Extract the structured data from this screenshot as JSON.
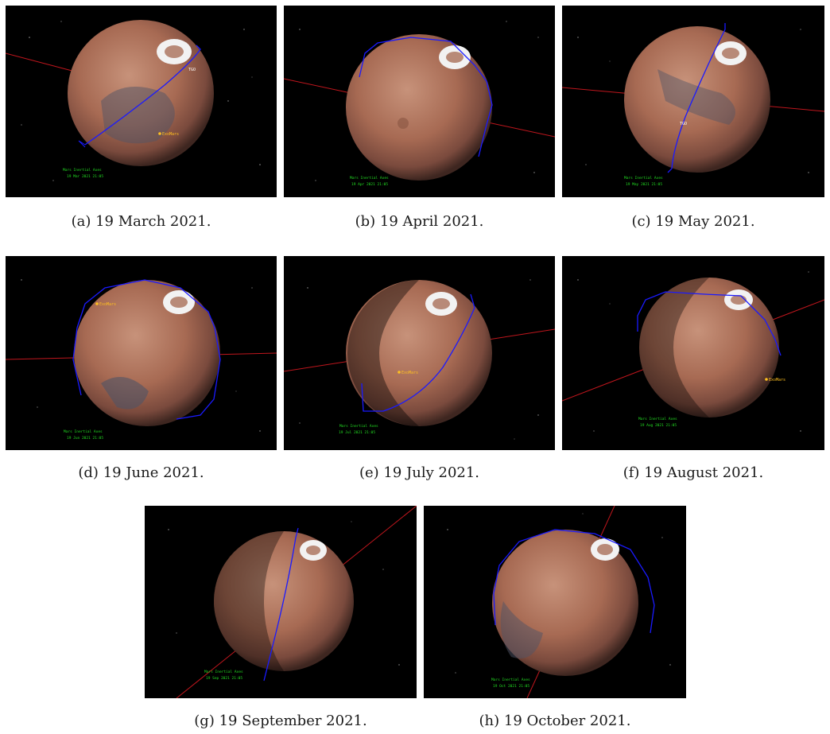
{
  "figure": {
    "panels": [
      {
        "label": "(a)",
        "caption": "19 March 2021.",
        "hud_title": "Mars Inertial Axes",
        "hud_date": "19 Mar 2021 21:05",
        "spacecraft_label": "TGO",
        "marker_label": "ExoMars"
      },
      {
        "label": "(b)",
        "caption": "19 April 2021.",
        "hud_title": "Mars Inertial Axes",
        "hud_date": "19 Apr 2021 21:05",
        "spacecraft_label": "",
        "marker_label": ""
      },
      {
        "label": "(c)",
        "caption": "19 May 2021.",
        "hud_title": "Mars Inertial Axes",
        "hud_date": "19 May 2021 21:05",
        "spacecraft_label": "TGO",
        "marker_label": ""
      },
      {
        "label": "(d)",
        "caption": "19 June 2021.",
        "hud_title": "Mars Inertial Axes",
        "hud_date": "19 Jun 2021 21:05",
        "spacecraft_label": "",
        "marker_label": "ExoMars"
      },
      {
        "label": "(e)",
        "caption": "19 July 2021.",
        "hud_title": "Mars Inertial Axes",
        "hud_date": "19 Jul 2021 21:05",
        "spacecraft_label": "",
        "marker_label": "ExoMars"
      },
      {
        "label": "(f)",
        "caption": "19 August 2021.",
        "hud_title": "Mars Inertial Axes",
        "hud_date": "19 Aug 2021 21:05",
        "spacecraft_label": "",
        "marker_label": "ExoMars"
      },
      {
        "label": "(g)",
        "caption": "19 September 2021.",
        "hud_title": "Mars Inertial Axes",
        "hud_date": "19 Sep 2021 21:05",
        "spacecraft_label": "",
        "marker_label": ""
      },
      {
        "label": "(h)",
        "caption": "19 October 2021.",
        "hud_title": "Mars Inertial Axes",
        "hud_date": "19 Oct 2021 21:05",
        "spacecraft_label": "",
        "marker_label": ""
      }
    ]
  },
  "colors": {
    "space": "#000000",
    "mars_light": "#c08a6e",
    "mars_mid": "#a86a52",
    "mars_dark": "#5e3a30",
    "dark_region": "#4f5466",
    "polar_cap": "#f2f2f2",
    "orbit_line": "#1a1aff",
    "axis_line": "#c0161d",
    "hud_text": "#22dd22",
    "marker": "#ffc020"
  }
}
